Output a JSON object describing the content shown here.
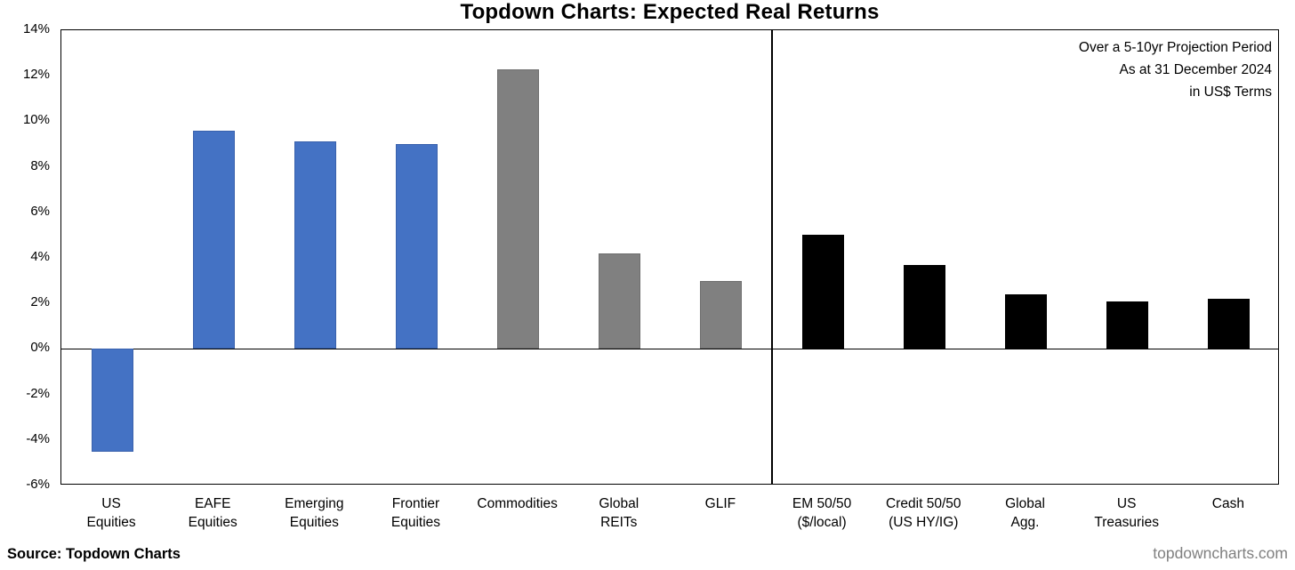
{
  "title": "Topdown Charts: Expected Real Returns",
  "annotations": {
    "line1": "Over a 5-10yr Projection Period",
    "line2": "As at 31 December 2024",
    "line3": "in US$ Terms"
  },
  "footer": {
    "source": "Source: Topdown Charts",
    "website": "topdowncharts.com"
  },
  "colors": {
    "equities_blue": "#4472C4",
    "equities_blue_edge": "#3961AC",
    "alternatives_gray": "#808080",
    "alternatives_gray_edge": "#6F6F6F",
    "fixed_income_black": "#000000",
    "axis_black": "#000000",
    "website_gray": "#808080"
  },
  "chart_data": {
    "type": "bar",
    "title": "Topdown Charts: Expected Real Returns",
    "xlabel": "",
    "ylabel": "",
    "ylim": [
      -6,
      14
    ],
    "ytick_step": 2,
    "ytick_labels": [
      "14%",
      "12%",
      "10%",
      "8%",
      "6%",
      "4%",
      "2%",
      "0%",
      "-2%",
      "-4%",
      "-6%"
    ],
    "grid": false,
    "legend_position": "none",
    "divider_after_category": "GLIF",
    "categories": [
      [
        "US",
        "Equities"
      ],
      [
        "EAFE",
        "Equities"
      ],
      [
        "Emerging",
        "Equities"
      ],
      [
        "Frontier",
        "Equities"
      ],
      [
        "Commodities"
      ],
      [
        "Global",
        "REITs"
      ],
      [
        "GLIF"
      ],
      [
        "EM 50/50",
        "($/local)"
      ],
      [
        "Credit 50/50",
        "(US HY/IG)"
      ],
      [
        "Global",
        "Agg."
      ],
      [
        "US",
        "Treasuries"
      ],
      [
        "Cash"
      ]
    ],
    "values": [
      -4.5,
      9.6,
      9.1,
      9.0,
      12.3,
      4.2,
      3.0,
      5.0,
      3.7,
      2.4,
      2.1,
      2.2
    ],
    "bar_colors": [
      "#4472C4",
      "#4472C4",
      "#4472C4",
      "#4472C4",
      "#808080",
      "#808080",
      "#808080",
      "#000000",
      "#000000",
      "#000000",
      "#000000",
      "#000000"
    ],
    "left_panel_category_count": 7,
    "right_panel_category_count": 5
  }
}
